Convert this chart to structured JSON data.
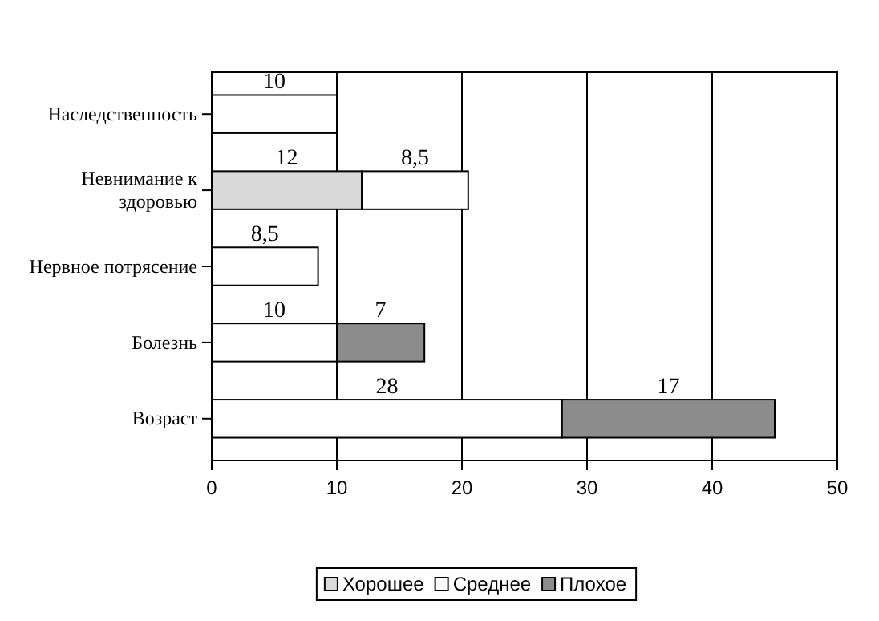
{
  "chart_data": {
    "type": "bar",
    "orientation": "horizontal",
    "stacked": true,
    "categories": [
      "Наследственность",
      "Невнимание к здоровью",
      "Нервное потрясение",
      "Болезнь",
      "Возраст"
    ],
    "series": [
      {
        "name": "Хорошее",
        "color": "#d9d9d9",
        "values": [
          null,
          12,
          null,
          null,
          null
        ],
        "value_labels": [
          null,
          "12",
          null,
          null,
          null
        ]
      },
      {
        "name": "Среднее",
        "color": "#ffffff",
        "values": [
          10,
          8.5,
          8.5,
          10,
          28
        ],
        "value_labels": [
          "10",
          "8,5",
          "8,5",
          "10",
          "28"
        ]
      },
      {
        "name": "Плохое",
        "color": "#8c8c8c",
        "values": [
          null,
          null,
          null,
          7,
          17
        ],
        "value_labels": [
          null,
          null,
          null,
          "7",
          "17"
        ]
      }
    ],
    "xlim": [
      0,
      50
    ],
    "xticks": [
      0,
      10,
      20,
      30,
      40,
      50
    ],
    "grid": "x",
    "legend": "bottom"
  }
}
